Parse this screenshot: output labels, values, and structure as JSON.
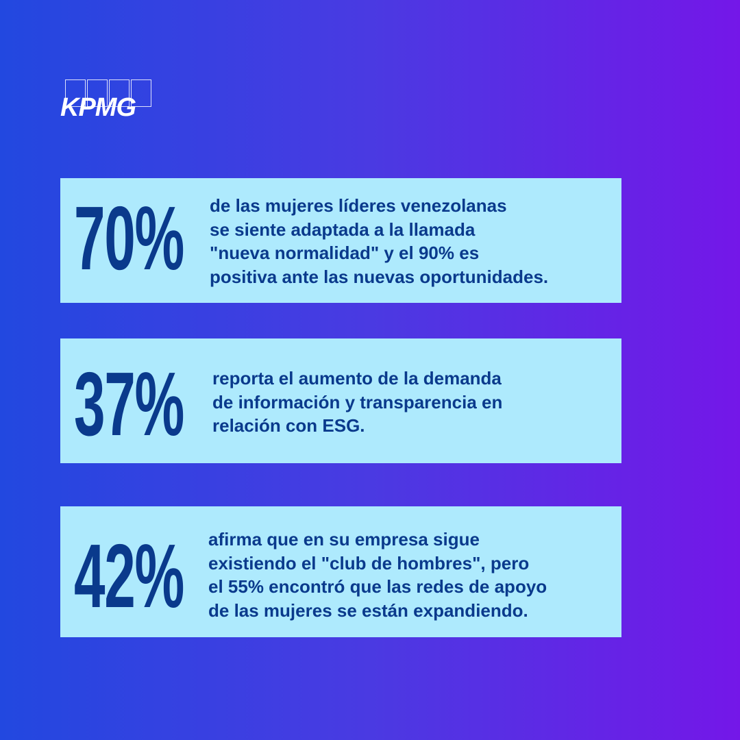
{
  "logo": {
    "text": "KPMG"
  },
  "stats": [
    {
      "value": "70%",
      "text": "de las mujeres líderes venezolanas\nse siente adaptada a la llamada\n\"nueva normalidad\" y el 90% es\npositiva ante las nuevas oportunidades."
    },
    {
      "value": "37%",
      "text": "reporta el aumento de la demanda\nde información y transparencia en\nrelación con ESG."
    },
    {
      "value": "42%",
      "text": "afirma que en su empresa sigue\nexistiendo el \"club de hombres\", pero\nel 55% encontró que las redes de apoyo\nde las mujeres se están expandiendo."
    }
  ],
  "colors": {
    "card": "#aeeafd",
    "text": "#0a3a8c",
    "gradient_start": "#2248e0",
    "gradient_end": "#7417e8"
  }
}
